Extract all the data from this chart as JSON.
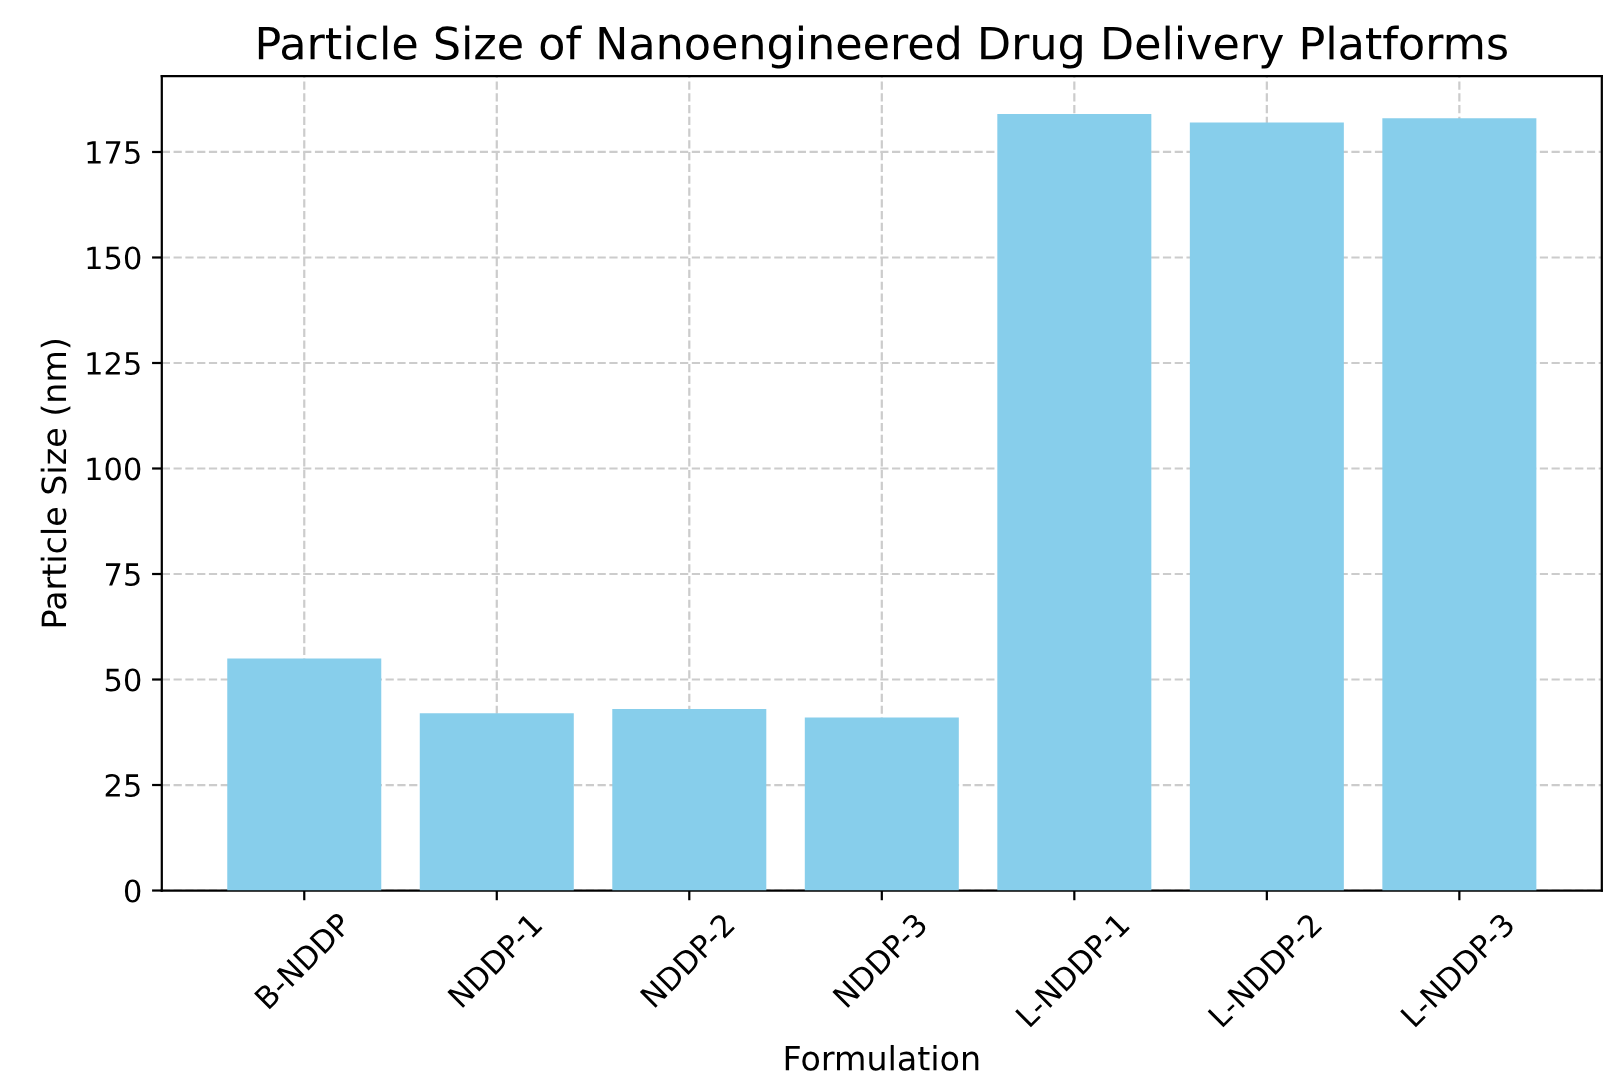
{
  "chart_data": {
    "type": "bar",
    "title": "Particle Size of Nanoengineered Drug Delivery Platforms",
    "xlabel": "Formulation",
    "ylabel": "Particle Size (nm)",
    "categories": [
      "B-NDDP",
      "NDDP-1",
      "NDDP-2",
      "NDDP-3",
      "L-NDDP-1",
      "L-NDDP-2",
      "L-NDDP-3"
    ],
    "values": [
      55,
      42,
      43,
      41,
      184,
      182,
      183
    ],
    "color": "#87ceeb",
    "ylim": [
      0,
      193
    ],
    "yticks": [
      0,
      25,
      50,
      75,
      100,
      125,
      150,
      175
    ],
    "grid": true
  }
}
